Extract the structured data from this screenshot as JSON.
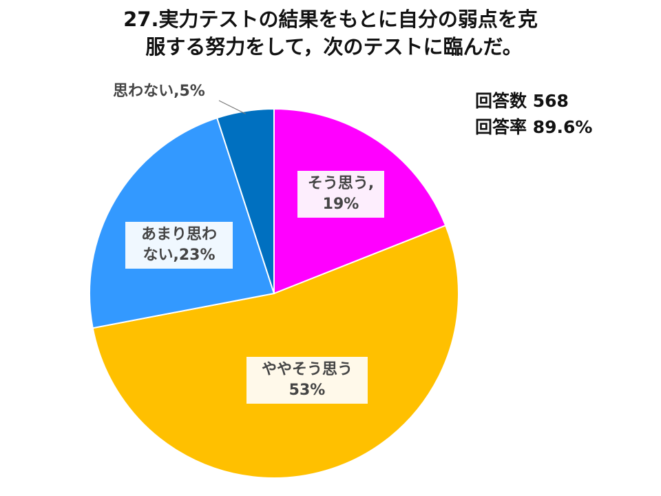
{
  "title": {
    "line1": "27.実力テストの結果をもとに自分の弱点を克",
    "line2": "服する努力をして，次のテストに臨んだ。"
  },
  "stats": {
    "respondents_label": "回答数",
    "respondents_value": "568",
    "rate_label": "回答率",
    "rate_value": "89.6%"
  },
  "chart_data": {
    "type": "pie",
    "start": "12 o'clock",
    "direction": "clockwise",
    "slices": [
      {
        "name": "そう思う",
        "value": 19,
        "label_line1": "そう思う,",
        "label_line2": "19%",
        "color": "#FF00FF",
        "label_bg": "#FDEEFD"
      },
      {
        "name": "ややそう思う",
        "value": 53,
        "label_line1": "ややそう思う",
        "label_line2": "53%",
        "color": "#FFC000",
        "label_bg": "#FFF9EA"
      },
      {
        "name": "あまり思わない",
        "value": 23,
        "label_line1": "あまり思わ",
        "label_line2": "ない,23%",
        "color": "#3399FF",
        "label_bg": "#F0F8FF"
      },
      {
        "name": "思わない",
        "value": 5,
        "label_line1": "思わない,5%",
        "label_line2": "",
        "color": "#0070C0",
        "label_bg": "#FFFFFF"
      }
    ]
  }
}
